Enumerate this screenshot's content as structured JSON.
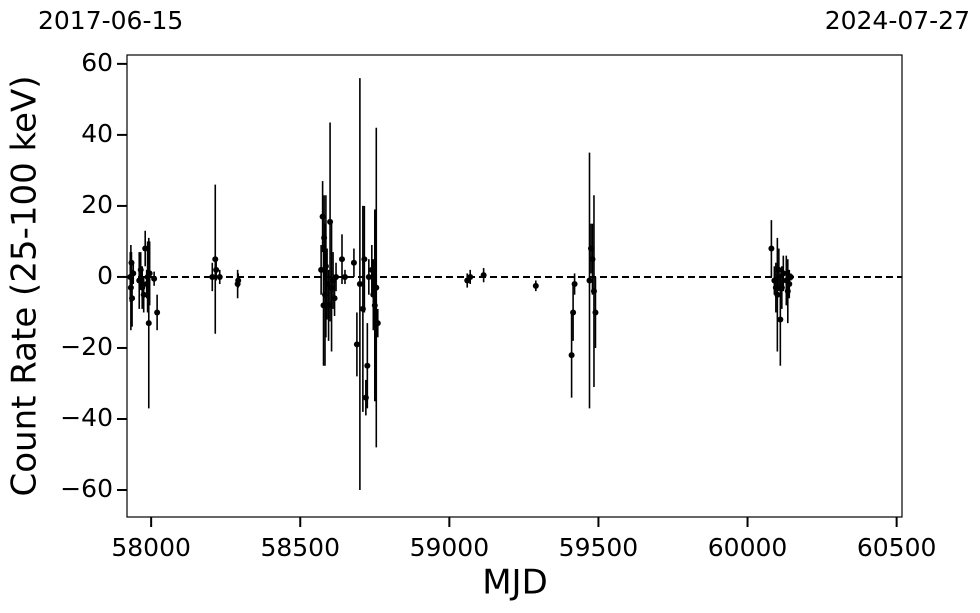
{
  "chart_data": {
    "type": "errorbar",
    "annotations": [
      "2017-06-15",
      "2024-07-27"
    ],
    "xlabel": "MJD",
    "ylabel": "Count Rate (25-100 keV)",
    "xlim": [
      57919,
      60518
    ],
    "ylim": [
      -67.6,
      62.5
    ],
    "xticks": [
      58000,
      58500,
      59000,
      59500,
      60000,
      60500
    ],
    "yticks": [
      {
        "value": -60,
        "label": "−60"
      },
      {
        "value": -40,
        "label": "−40"
      },
      {
        "value": -20,
        "label": "−20"
      },
      0,
      20,
      40,
      60
    ],
    "reference_line": 0,
    "series": [
      {
        "color": "#000000",
        "x": [
          57930,
          57932,
          57934,
          57936,
          57940,
          57960,
          57965,
          57970,
          57975,
          57980,
          57985,
          57988,
          57992,
          57995,
          58010,
          58020,
          58205,
          58215,
          58218,
          58230,
          58290,
          58292,
          58570,
          58575,
          58578,
          58580,
          58583,
          58586,
          58590,
          58595,
          58600,
          58605,
          58610,
          58615,
          58620,
          58640,
          58650,
          58680,
          58690,
          58700,
          58710,
          58715,
          58720,
          58725,
          58730,
          58740,
          58745,
          58750,
          58755,
          58760,
          59060,
          59070,
          59115,
          59290,
          59410,
          59415,
          59420,
          59470,
          59475,
          59480,
          59485,
          59490,
          60080,
          60090,
          60095,
          60100,
          60105,
          60110,
          60115,
          60120,
          60130,
          60135,
          60140,
          60145
        ],
        "values": [
          0,
          -3,
          4,
          -6,
          1,
          -1,
          2,
          -3,
          -5,
          8,
          -2,
          0,
          -13,
          1,
          -0.5,
          -10,
          0,
          5,
          2,
          0,
          -2,
          -1,
          2,
          17,
          -8,
          11,
          -5,
          3,
          -2,
          -8,
          15.5,
          -3,
          -1,
          -6,
          0,
          5,
          0,
          4,
          -19,
          -2,
          -9,
          5,
          -34,
          -25,
          0,
          2,
          -5,
          -8,
          -3,
          -13,
          -1,
          0,
          0.5,
          -2.5,
          -22,
          -10,
          -2,
          -1,
          8,
          5,
          -4,
          -10,
          8,
          -1,
          -3,
          -5,
          2,
          -12,
          -3,
          1,
          -1,
          -4,
          -2,
          0
        ],
        "errors": [
          7,
          12,
          3,
          8,
          3,
          8,
          5,
          6,
          5,
          5,
          4,
          10,
          24,
          9,
          2,
          5,
          4,
          21,
          3,
          2,
          4,
          2,
          7,
          10,
          17,
          12,
          20,
          20,
          10,
          10,
          28,
          18,
          8,
          5,
          4,
          7,
          2,
          4,
          9,
          58,
          29,
          15,
          5,
          12,
          5,
          7,
          10,
          27,
          45,
          4,
          2,
          2,
          2,
          1.5,
          12,
          8,
          3,
          36,
          7,
          10,
          27,
          10,
          8,
          4,
          7,
          16,
          6,
          13,
          6,
          5,
          7,
          9,
          4,
          1
        ]
      }
    ]
  }
}
